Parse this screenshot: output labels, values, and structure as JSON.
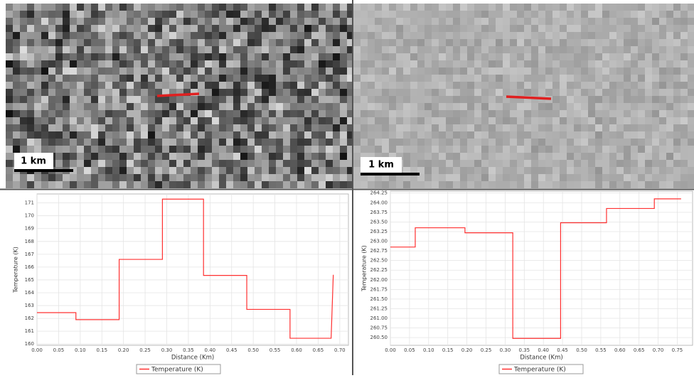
{
  "images": [
    {
      "scale_label": "1 km"
    },
    {
      "scale_label": "1 km"
    }
  ],
  "chart_data": [
    {
      "type": "line",
      "x_label": "Distance (Km)",
      "y_label": "Temperature (K)",
      "xlim": [
        0,
        0.72
      ],
      "ylim": [
        159.9,
        171.7
      ],
      "grid": true,
      "legend": "bottom",
      "xticks": [
        {
          "value": 0,
          "label": "0.00"
        },
        0.05,
        {
          "value": 0.1,
          "label": "0.10"
        },
        0.15,
        {
          "value": 0.2,
          "label": "0.20"
        },
        0.25,
        {
          "value": 0.3,
          "label": "0.30"
        },
        0.35,
        {
          "value": 0.4,
          "label": "0.40"
        },
        0.45,
        {
          "value": 0.5,
          "label": "0.50"
        },
        0.55,
        {
          "value": 0.6,
          "label": "0.60"
        },
        0.65,
        {
          "value": 0.7,
          "label": "0.70"
        }
      ],
      "yticks": [
        160,
        161,
        162,
        163,
        164,
        165,
        166,
        167,
        168,
        169,
        170,
        171
      ],
      "x": [
        0,
        0.09,
        0.09,
        0.19,
        0.19,
        0.29,
        0.29,
        0.385,
        0.385,
        0.485,
        0.485,
        0.585,
        0.585,
        0.68,
        0.68,
        0.685
      ],
      "series": [
        {
          "name": "Temperature (K)",
          "color": "#ff3030",
          "values": [
            162.45,
            162.45,
            161.9,
            161.9,
            166.6,
            166.6,
            171.3,
            171.3,
            165.35,
            165.35,
            162.7,
            162.7,
            160.45,
            160.45,
            160.45,
            165.4
          ]
        }
      ]
    },
    {
      "type": "line",
      "x_label": "Distance (Km)",
      "y_label": "Temperature (K)",
      "xlim": [
        0,
        0.79
      ],
      "ylim": [
        260.3,
        264.3
      ],
      "grid": true,
      "legend": "bottom",
      "xticks": [
        {
          "value": 0,
          "label": "0.00"
        },
        0.05,
        {
          "value": 0.1,
          "label": "0.10"
        },
        0.15,
        {
          "value": 0.2,
          "label": "0.20"
        },
        0.25,
        {
          "value": 0.3,
          "label": "0.30"
        },
        0.35,
        {
          "value": 0.4,
          "label": "0.40"
        },
        0.45,
        {
          "value": 0.5,
          "label": "0.50"
        },
        0.55,
        {
          "value": 0.6,
          "label": "0.60"
        },
        0.65,
        {
          "value": 0.7,
          "label": "0.70"
        },
        0.75
      ],
      "yticks": [
        {
          "value": 260.5,
          "label": "260.50"
        },
        260.75,
        {
          "value": 261,
          "label": "261.00"
        },
        261.25,
        {
          "value": 261.5,
          "label": "261.50"
        },
        261.75,
        {
          "value": 262,
          "label": "262.00"
        },
        262.25,
        {
          "value": 262.5,
          "label": "262.50"
        },
        262.75,
        {
          "value": 263,
          "label": "263.00"
        },
        263.25,
        {
          "value": 263.5,
          "label": "263.50"
        },
        263.75,
        {
          "value": 264,
          "label": "264.00"
        },
        264.25
      ],
      "x": [
        0,
        0.065,
        0.065,
        0.195,
        0.195,
        0.32,
        0.32,
        0.445,
        0.445,
        0.565,
        0.565,
        0.69,
        0.69,
        0.76
      ],
      "series": [
        {
          "name": "Temperature (K)",
          "color": "#ff3030",
          "values": [
            262.85,
            262.85,
            263.35,
            263.35,
            263.22,
            263.22,
            260.48,
            260.48,
            263.48,
            263.48,
            263.85,
            263.85,
            264.1,
            264.1
          ]
        }
      ]
    }
  ]
}
